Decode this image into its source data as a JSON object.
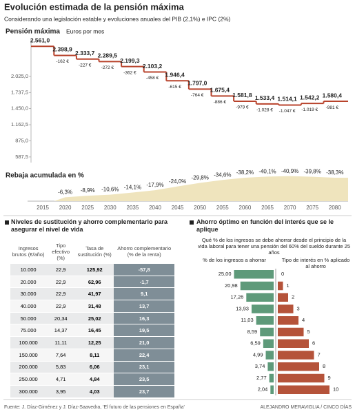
{
  "title": "Evolución estimada de la pensión máxima",
  "subtitle": "Considerando una legislación estable y evoluciones anuales del PIB (2,1%) e IPC (2%)",
  "source": "Fuente: J. Díaz-Giménez y J. Díaz-Saavedra, 'El futuro de las pensiones en España'",
  "credit": "ALEJANDRO MERAVIGLIA / CINCO DÍAS",
  "chart_data": [
    {
      "type": "step",
      "title": "Pensión máxima",
      "subtitle": "Euros por mes",
      "categories": [
        "2015",
        "2020",
        "2025",
        "2030",
        "2035",
        "2040",
        "2045",
        "2050",
        "2055",
        "2060",
        "2065",
        "2070",
        "2075",
        "2080"
      ],
      "values": [
        2561.0,
        2398.9,
        2333.7,
        2289.5,
        2199.3,
        2103.2,
        1946.4,
        1797.0,
        1675.4,
        1581.8,
        1533.4,
        1514.1,
        1542.2,
        1580.4
      ],
      "value_labels": [
        "2.561,0",
        "2.398,9",
        "2.333,7",
        "2.289,5",
        "2.199,3",
        "2.103,2",
        "1.946,4",
        "1.797,0",
        "1.675,4",
        "1.581,8",
        "1.533,4",
        "1.514,1",
        "1.542,2",
        "1.580,4"
      ],
      "annotations": [
        null,
        "-162 €",
        "-227 €",
        "-272 €",
        "-362 €",
        "-458 €",
        "-615 €",
        "-764 €",
        "-886 €",
        "-979 €",
        "-1.028 €",
        "-1.047 €",
        "-1.019 €",
        "-981 €"
      ],
      "color": "#b8432c",
      "ylim": [
        500,
        2650
      ],
      "yticks": [
        {
          "value": 2025,
          "label": "2.025,0"
        },
        {
          "value": 1737.5,
          "label": "1.737,5"
        },
        {
          "value": 1450,
          "label": "1.450,0"
        },
        {
          "value": 1162.5,
          "label": "1.162,5"
        },
        {
          "value": 875,
          "label": "875,0"
        },
        {
          "value": 587.5,
          "label": "587,5"
        }
      ]
    },
    {
      "type": "area",
      "title": "Rebaja acumulada en %",
      "values": [
        null,
        -6.3,
        -8.9,
        -10.6,
        -14.1,
        -17.9,
        -24.0,
        -29.8,
        -34.6,
        -38.2,
        -40.1,
        -40.9,
        -39.8,
        -38.3
      ],
      "value_labels": [
        null,
        "-6,3%",
        "-8,9%",
        "-10,6%",
        "-14,1%",
        "-17,9%",
        "-24,0%",
        "-29,8%",
        "-34,6%",
        "-38,2%",
        "-40,1%",
        "-40,9%",
        "-39,8%",
        "-38,3%"
      ],
      "color": "#efe4bd",
      "ylim": [
        0,
        -45
      ]
    },
    {
      "type": "butterfly",
      "title": "Ahorro óptimo en función del interés que se le aplique",
      "subtitle": "Qué % de los ingresos se debe ahorrar desde el principio de la vida laboral para tener una pensión del 60% del sueldo durante 25 años",
      "series": [
        {
          "name": "% de los ingresos a ahorrar",
          "color": "#5e9a7a",
          "values": [
            25.0,
            20.98,
            17.26,
            13.93,
            11.03,
            8.59,
            6.59,
            4.99,
            3.74,
            2.77,
            2.04
          ],
          "value_labels": [
            "25,00",
            "20,98",
            "17,26",
            "13,93",
            "11,03",
            "8,59",
            "6,59",
            "4,99",
            "3,74",
            "2,77",
            "2,04"
          ]
        },
        {
          "name": "Tipo de interés en % aplicado al ahorro",
          "color": "#b5533a",
          "values": [
            0,
            1,
            2,
            3,
            4,
            5,
            6,
            7,
            8,
            9,
            10
          ]
        }
      ]
    }
  ],
  "table": {
    "title": "Niveles de sustitución y ahorro complementario para asegurar el nivel de vida",
    "headers": [
      "Ingresos brutos (€/año)",
      "Tipo efectivo (%)",
      "Tasa de sustitución (%)",
      "Ahorro complementario (% de la renta)"
    ],
    "rows": [
      [
        "10.000",
        "22,9",
        "125,92",
        "-57,8"
      ],
      [
        "20.000",
        "22,9",
        "62,96",
        "-1,7"
      ],
      [
        "30.000",
        "22,9",
        "41,97",
        "9,1"
      ],
      [
        "40.000",
        "22,9",
        "31,48",
        "13,7"
      ],
      [
        "50.000",
        "20,34",
        "25,02",
        "16,3"
      ],
      [
        "75.000",
        "14,37",
        "16,45",
        "19,5"
      ],
      [
        "100.000",
        "11,11",
        "12,25",
        "21,0"
      ],
      [
        "150.000",
        "7,64",
        "8,11",
        "22,4"
      ],
      [
        "200.000",
        "5,83",
        "6,06",
        "23,1"
      ],
      [
        "250.000",
        "4,71",
        "4,84",
        "23,5"
      ],
      [
        "300.000",
        "3,95",
        "4,03",
        "23,7"
      ]
    ]
  }
}
